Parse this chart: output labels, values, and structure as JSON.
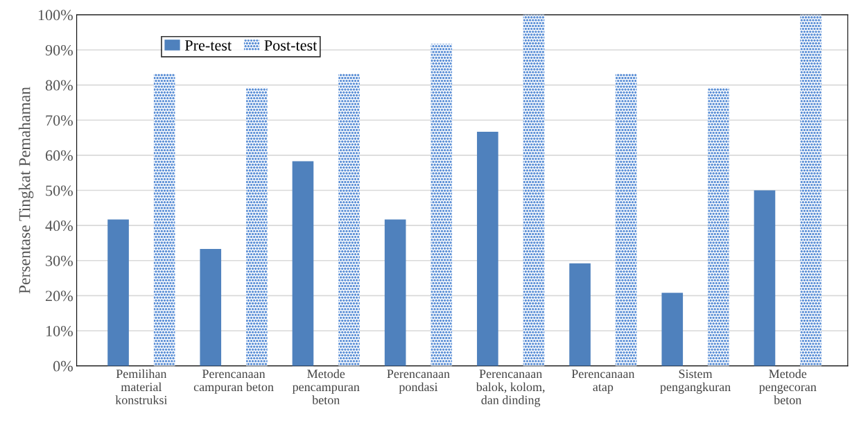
{
  "chart_data": {
    "type": "bar",
    "ylabel": "Persentase Tingkat Pemahaman",
    "categories": [
      "Pemilihan\nmaterial\nkonstruksi",
      "Perencanaan\ncampuran beton",
      "Metode\npencampuran\nbeton",
      "Perencanaan\npondasi",
      "Perencanaan\nbalok, kolom,\ndan dinding",
      "Perencanaan\natap",
      "Sistem\npengangkuran",
      "Metode\npengecoran\nbeton"
    ],
    "series": [
      {
        "name": "Pre-test",
        "color": "#4f81bd",
        "values": [
          41.7,
          33.3,
          58.3,
          41.7,
          66.7,
          29.2,
          20.8,
          50
        ]
      },
      {
        "name": "Post-test",
        "color": "#5b8fd6",
        "values": [
          83.3,
          79.2,
          83.3,
          91.7,
          100,
          83.3,
          79.2,
          100
        ]
      }
    ],
    "ylim": [
      0,
      100
    ],
    "yticks": [
      {
        "value": 0,
        "label": "0%"
      },
      {
        "value": 10,
        "label": "10%"
      },
      {
        "value": 20,
        "label": "20%"
      },
      {
        "value": 30,
        "label": "30%"
      },
      {
        "value": 40,
        "label": "40%"
      },
      {
        "value": 50,
        "label": "50%"
      },
      {
        "value": 60,
        "label": "60%"
      },
      {
        "value": 70,
        "label": "70%"
      },
      {
        "value": 80,
        "label": "80%"
      },
      {
        "value": 90,
        "label": "90%"
      },
      {
        "value": 100,
        "label": "100%"
      }
    ],
    "grid": "y",
    "legend": "top left"
  }
}
